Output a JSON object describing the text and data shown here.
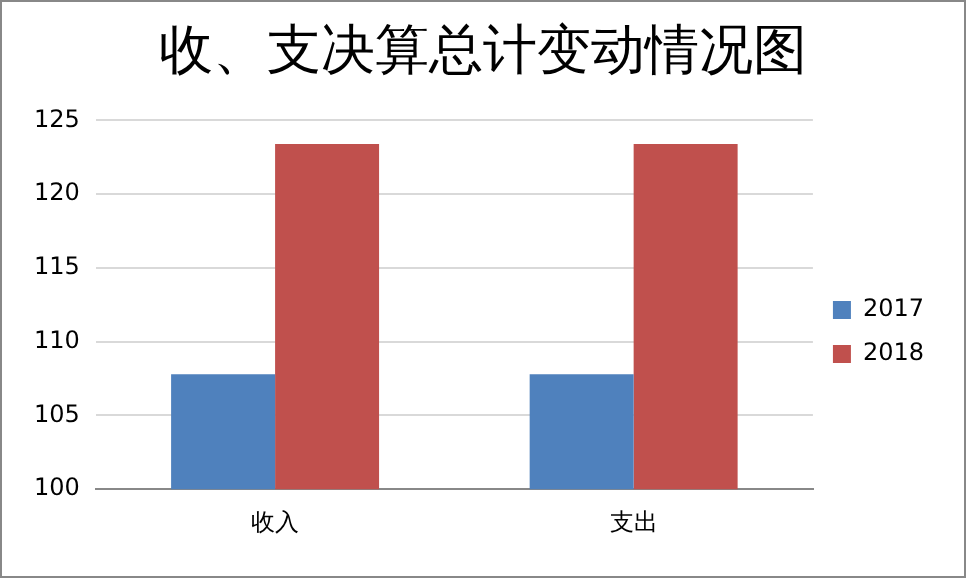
{
  "chart_data": {
    "type": "bar",
    "title": "收、支决算总计变动情况图",
    "categories": [
      "收入",
      "支出"
    ],
    "series": [
      {
        "name": "2017",
        "color": "#4f81bd",
        "values": [
          107.8,
          107.8
        ]
      },
      {
        "name": "2018",
        "color": "#c0504d",
        "values": [
          123.4,
          123.4
        ]
      }
    ],
    "ylim": [
      100,
      125
    ],
    "yticks": [
      100,
      105,
      110,
      115,
      120,
      125
    ],
    "grid": "y",
    "legend": "right"
  }
}
